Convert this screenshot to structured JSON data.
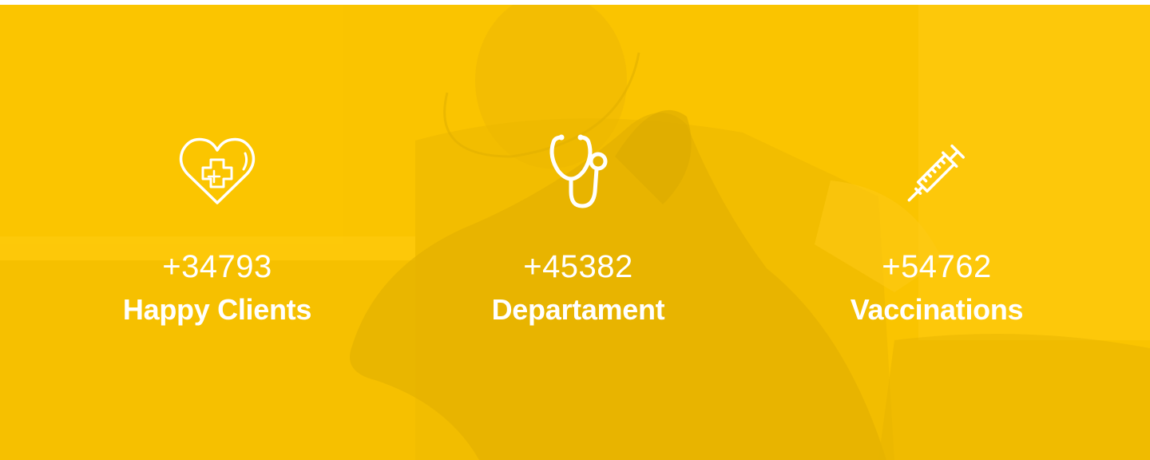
{
  "section": {
    "background_color": "#f6c400",
    "overlay_color": "#ffc800",
    "background_image": "veterinarian-examining-german-shepherd-dog"
  },
  "stats": [
    {
      "icon": "heart-medical-cross-icon",
      "number": "+34793",
      "label": "Happy Clients"
    },
    {
      "icon": "stethoscope-icon",
      "number": "+45382",
      "label": "Departament"
    },
    {
      "icon": "syringe-icon",
      "number": "+54762",
      "label": "Vaccinations"
    }
  ]
}
